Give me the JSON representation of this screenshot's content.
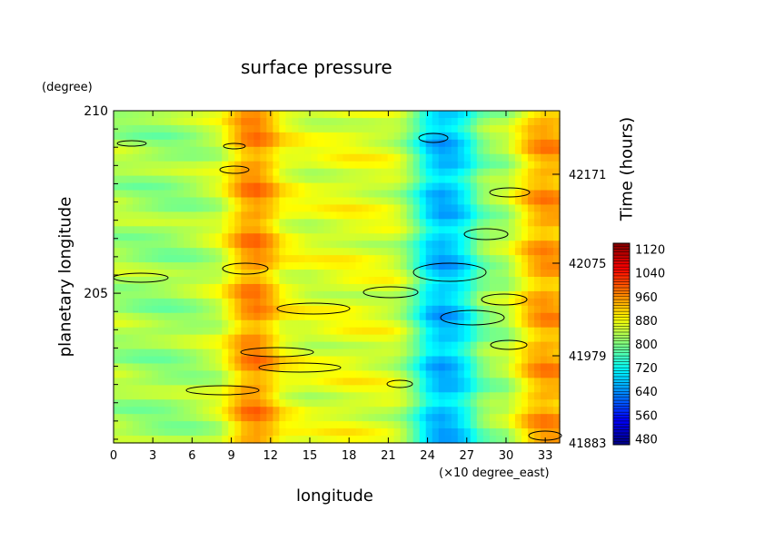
{
  "chart_data": {
    "type": "heatmap",
    "title": "surface pressure",
    "xlabel": "longitude",
    "x_unit": "(×10 degree_east)",
    "ylabel": "planetary longitude",
    "y_unit": "(degree)",
    "y2label": "Time (hours)",
    "xlim": [
      0,
      34.1
    ],
    "ylim": [
      200.9,
      210
    ],
    "x_ticks": [
      "0",
      "3",
      "6",
      "9",
      "12",
      "15",
      "18",
      "21",
      "24",
      "27",
      "30",
      "33"
    ],
    "y_ticks": [
      "205",
      "210"
    ],
    "y2_ticks": [
      "41883",
      "41979",
      "42075",
      "42171"
    ],
    "colorbar": {
      "min": 460,
      "max": 1140,
      "ticks": [
        "480",
        "560",
        "640",
        "720",
        "800",
        "880",
        "960",
        "1040",
        "1120"
      ]
    },
    "column_profile": {
      "x": [
        0,
        2,
        4,
        6,
        8,
        9,
        10,
        11,
        12,
        13,
        15,
        18,
        21,
        22,
        23,
        24,
        25,
        26,
        27,
        28,
        29,
        30,
        31,
        32,
        33,
        34
      ],
      "values": [
        830,
        820,
        815,
        825,
        850,
        900,
        950,
        960,
        930,
        880,
        860,
        870,
        860,
        840,
        780,
        700,
        670,
        680,
        720,
        790,
        820,
        830,
        880,
        930,
        950,
        940
      ]
    }
  }
}
